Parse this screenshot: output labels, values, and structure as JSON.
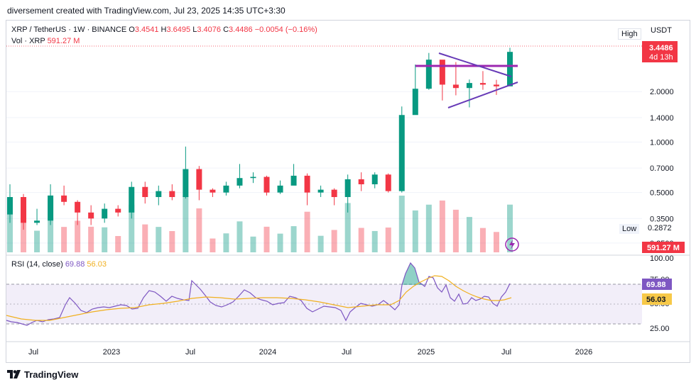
{
  "header": {
    "credit": "diversement created with TradingView.com, Jul 23, 2025 14:35 UTC+3:30"
  },
  "legend": {
    "symbol": "XRP / TetherUS · 1W · BINANCE",
    "open_label": "O",
    "open": "3.4541",
    "high_label": "H",
    "high": "3.6495",
    "low_label": "L",
    "low": "3.4076",
    "close_label": "C",
    "close": "3.4486",
    "change": "−0.0054 (−0.16%)",
    "vol_label": "Vol · XRP",
    "vol": "591.27 M"
  },
  "price_scale": {
    "high_button": "High",
    "currency": "USDT",
    "low_button": "Low",
    "low_value": "0.2872",
    "ticks": [
      {
        "label": "2.0000",
        "value": 2.0
      },
      {
        "label": "1.4000",
        "value": 1.4
      },
      {
        "label": "1.0000",
        "value": 1.0
      },
      {
        "label": "0.7000",
        "value": 0.7
      },
      {
        "label": "0.5000",
        "value": 0.5
      },
      {
        "label": "0.3500",
        "value": 0.35
      },
      {
        "label": "0.2500",
        "value": 0.25
      }
    ],
    "last_price": "3.4486",
    "countdown": "4d 13h",
    "volume_badge": "591.27 M"
  },
  "rsi": {
    "label": "RSI (14, close)",
    "rsi_value": "69.88",
    "ma_value": "56.03",
    "ticks": [
      {
        "label": "100.00",
        "value": 100
      },
      {
        "label": "75.00",
        "value": 75
      },
      {
        "label": "50.00",
        "value": 50
      },
      {
        "label": "25.00",
        "value": 25
      }
    ]
  },
  "time_axis": [
    "Jul",
    "2023",
    "Jul",
    "2024",
    "Jul",
    "2025",
    "Jul",
    "2026"
  ],
  "footer": {
    "brand": "TradingView"
  },
  "colors": {
    "up": "#089981",
    "down": "#f23645",
    "rsi": "#7e57c2",
    "rsi_ma": "#f0b020",
    "pattern": "#9c27b0",
    "triangle": "#673ab7",
    "rsi_band": "#ede7f6"
  },
  "chart_data": {
    "type": "candlestick",
    "symbol": "XRP / TetherUS",
    "interval": "1W",
    "scale": "log",
    "ylim": [
      0.22,
      3.7
    ],
    "x_ticks": [
      "Jul",
      "2023",
      "Jul",
      "2024",
      "Jul",
      "2025",
      "Jul",
      "2026"
    ],
    "series": [
      {
        "name": "XRP / TetherUS",
        "values": [
          {
            "t": "2022-06",
            "o": 0.37,
            "h": 0.56,
            "l": 0.33,
            "c": 0.47
          },
          {
            "t": "2022-07",
            "o": 0.47,
            "h": 0.49,
            "l": 0.3,
            "c": 0.33
          },
          {
            "t": "2022-08",
            "o": 0.33,
            "h": 0.4,
            "l": 0.32,
            "c": 0.34
          },
          {
            "t": "2022-09",
            "o": 0.34,
            "h": 0.56,
            "l": 0.32,
            "c": 0.48
          },
          {
            "t": "2022-10",
            "o": 0.48,
            "h": 0.55,
            "l": 0.42,
            "c": 0.44
          },
          {
            "t": "2022-11",
            "o": 0.44,
            "h": 0.45,
            "l": 0.32,
            "c": 0.38
          },
          {
            "t": "2022-12",
            "o": 0.38,
            "h": 0.42,
            "l": 0.32,
            "c": 0.35
          },
          {
            "t": "2023-01",
            "o": 0.35,
            "h": 0.43,
            "l": 0.33,
            "c": 0.4
          },
          {
            "t": "2023-02",
            "o": 0.4,
            "h": 0.42,
            "l": 0.36,
            "c": 0.38
          },
          {
            "t": "2023-03",
            "o": 0.38,
            "h": 0.58,
            "l": 0.35,
            "c": 0.54
          },
          {
            "t": "2023-04",
            "o": 0.54,
            "h": 0.58,
            "l": 0.43,
            "c": 0.47
          },
          {
            "t": "2023-05",
            "o": 0.47,
            "h": 0.55,
            "l": 0.42,
            "c": 0.51
          },
          {
            "t": "2023-06",
            "o": 0.51,
            "h": 0.56,
            "l": 0.45,
            "c": 0.47
          },
          {
            "t": "2023-07",
            "o": 0.47,
            "h": 0.94,
            "l": 0.46,
            "c": 0.69
          },
          {
            "t": "2023-08",
            "o": 0.69,
            "h": 0.72,
            "l": 0.45,
            "c": 0.52
          },
          {
            "t": "2023-09",
            "o": 0.52,
            "h": 0.53,
            "l": 0.47,
            "c": 0.5
          },
          {
            "t": "2023-10",
            "o": 0.5,
            "h": 0.58,
            "l": 0.48,
            "c": 0.55
          },
          {
            "t": "2023-11",
            "o": 0.55,
            "h": 0.74,
            "l": 0.53,
            "c": 0.61
          },
          {
            "t": "2023-12",
            "o": 0.61,
            "h": 0.66,
            "l": 0.57,
            "c": 0.62
          },
          {
            "t": "2024-01",
            "o": 0.62,
            "h": 0.63,
            "l": 0.48,
            "c": 0.5
          },
          {
            "t": "2024-02",
            "o": 0.5,
            "h": 0.59,
            "l": 0.49,
            "c": 0.55
          },
          {
            "t": "2024-03",
            "o": 0.55,
            "h": 0.74,
            "l": 0.56,
            "c": 0.63
          },
          {
            "t": "2024-04",
            "o": 0.63,
            "h": 0.65,
            "l": 0.42,
            "c": 0.5
          },
          {
            "t": "2024-05",
            "o": 0.5,
            "h": 0.55,
            "l": 0.47,
            "c": 0.52
          },
          {
            "t": "2024-06",
            "o": 0.52,
            "h": 0.53,
            "l": 0.42,
            "c": 0.47
          },
          {
            "t": "2024-07",
            "o": 0.47,
            "h": 0.64,
            "l": 0.38,
            "c": 0.6
          },
          {
            "t": "2024-08",
            "o": 0.6,
            "h": 0.66,
            "l": 0.51,
            "c": 0.56
          },
          {
            "t": "2024-09",
            "o": 0.56,
            "h": 0.66,
            "l": 0.53,
            "c": 0.64
          },
          {
            "t": "2024-10",
            "o": 0.64,
            "h": 0.65,
            "l": 0.5,
            "c": 0.51
          },
          {
            "t": "2024-11",
            "o": 0.51,
            "h": 1.63,
            "l": 0.5,
            "c": 1.45
          },
          {
            "t": "2024-12",
            "o": 1.45,
            "h": 2.9,
            "l": 1.85,
            "c": 2.08
          },
          {
            "t": "2025-01",
            "o": 2.08,
            "h": 3.4,
            "l": 2.05,
            "c": 3.1
          },
          {
            "t": "2025-02",
            "o": 3.1,
            "h": 3.05,
            "l": 1.77,
            "c": 2.2
          },
          {
            "t": "2025-03",
            "o": 2.2,
            "h": 3.0,
            "l": 1.9,
            "c": 2.1
          },
          {
            "t": "2025-04",
            "o": 2.1,
            "h": 2.36,
            "l": 1.61,
            "c": 2.25
          },
          {
            "t": "2025-05",
            "o": 2.25,
            "h": 2.65,
            "l": 2.05,
            "c": 2.2
          },
          {
            "t": "2025-06",
            "o": 2.2,
            "h": 2.35,
            "l": 1.91,
            "c": 2.15
          },
          {
            "t": "2025-07",
            "o": 2.15,
            "h": 3.65,
            "l": 2.2,
            "c": 3.45
          }
        ]
      }
    ],
    "rsi": {
      "name": "RSI (14, close)",
      "last": 69.88,
      "ma_last": 56.03,
      "ylim": [
        0,
        100
      ],
      "bands": [
        30,
        70
      ]
    }
  }
}
